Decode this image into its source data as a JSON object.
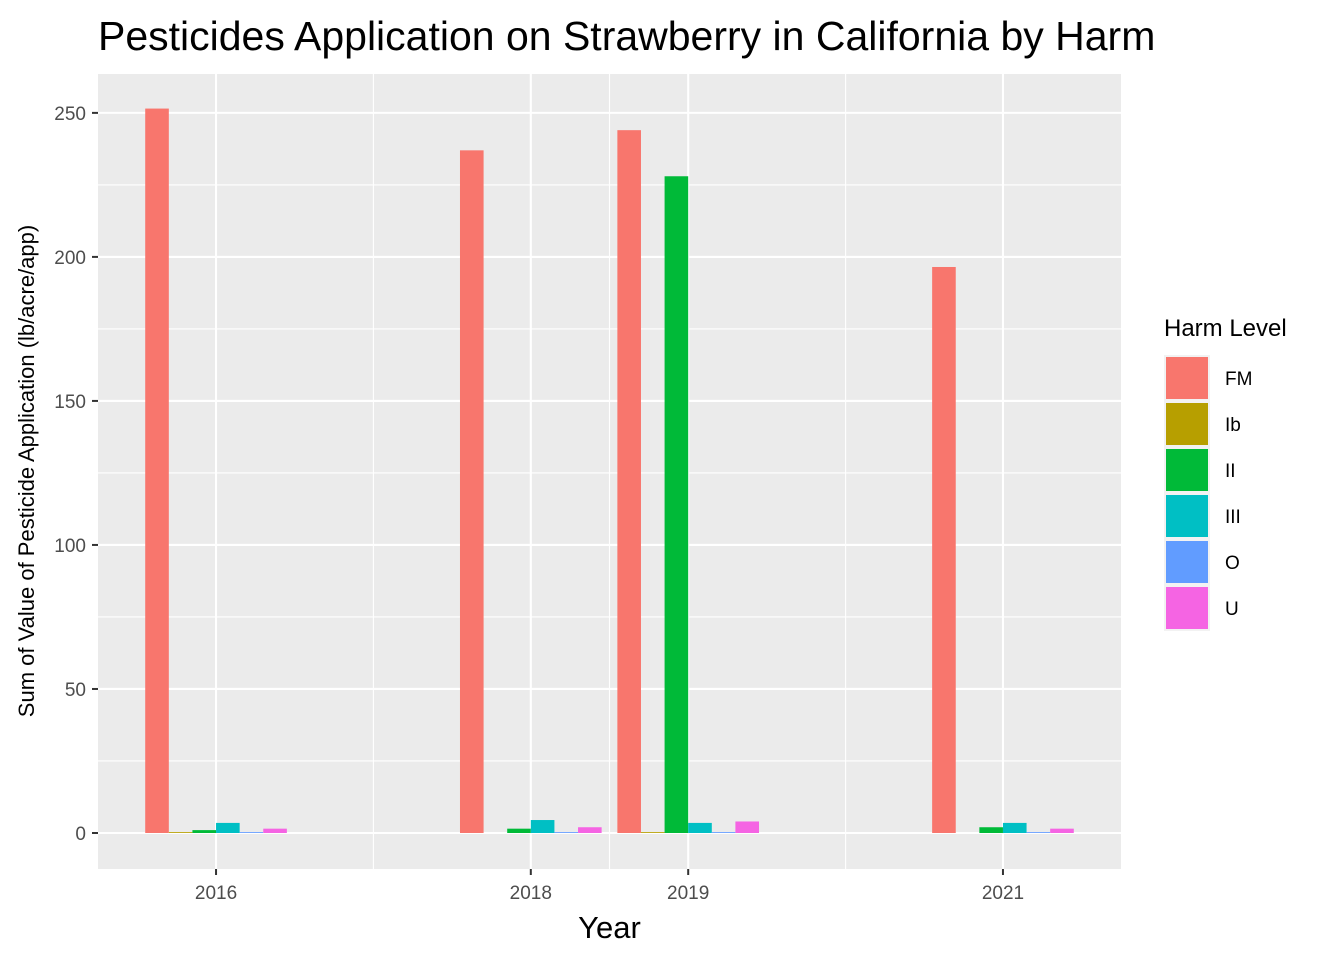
{
  "chart_data": {
    "type": "bar",
    "title": "Pesticides Application on Strawberry in California by Harm",
    "xlabel": "Year",
    "ylabel": "Sum of Value of Pesticide Application (lb/acre/app)",
    "categories": [
      "2016",
      "2018",
      "2019",
      "2021"
    ],
    "x_scale": "continuous",
    "x_breaks": [
      2016,
      2018,
      2019,
      2021
    ],
    "xlim": [
      2015.25,
      2021.75
    ],
    "ylim": [
      -12.5,
      263.5
    ],
    "y_ticks": [
      0,
      50,
      100,
      150,
      200,
      250
    ],
    "grid": true,
    "legend": {
      "title": "Harm Level",
      "position": "right"
    },
    "series": [
      {
        "name": "FM",
        "color": "#F8766D",
        "values": [
          251.5,
          237.0,
          244.0,
          196.5
        ]
      },
      {
        "name": "Ib",
        "color": "#B79F00",
        "values": [
          0.3,
          0.0,
          0.3,
          0.0
        ]
      },
      {
        "name": "II",
        "color": "#00BA38",
        "values": [
          1.0,
          1.5,
          228.0,
          2.0
        ]
      },
      {
        "name": "III",
        "color": "#00BFC4",
        "values": [
          3.5,
          4.5,
          3.5,
          3.5
        ]
      },
      {
        "name": "O",
        "color": "#619CFF",
        "values": [
          0.3,
          0.3,
          0.3,
          0.3
        ]
      },
      {
        "name": "U",
        "color": "#F564E3",
        "values": [
          1.5,
          2.0,
          4.0,
          1.5
        ]
      }
    ]
  }
}
